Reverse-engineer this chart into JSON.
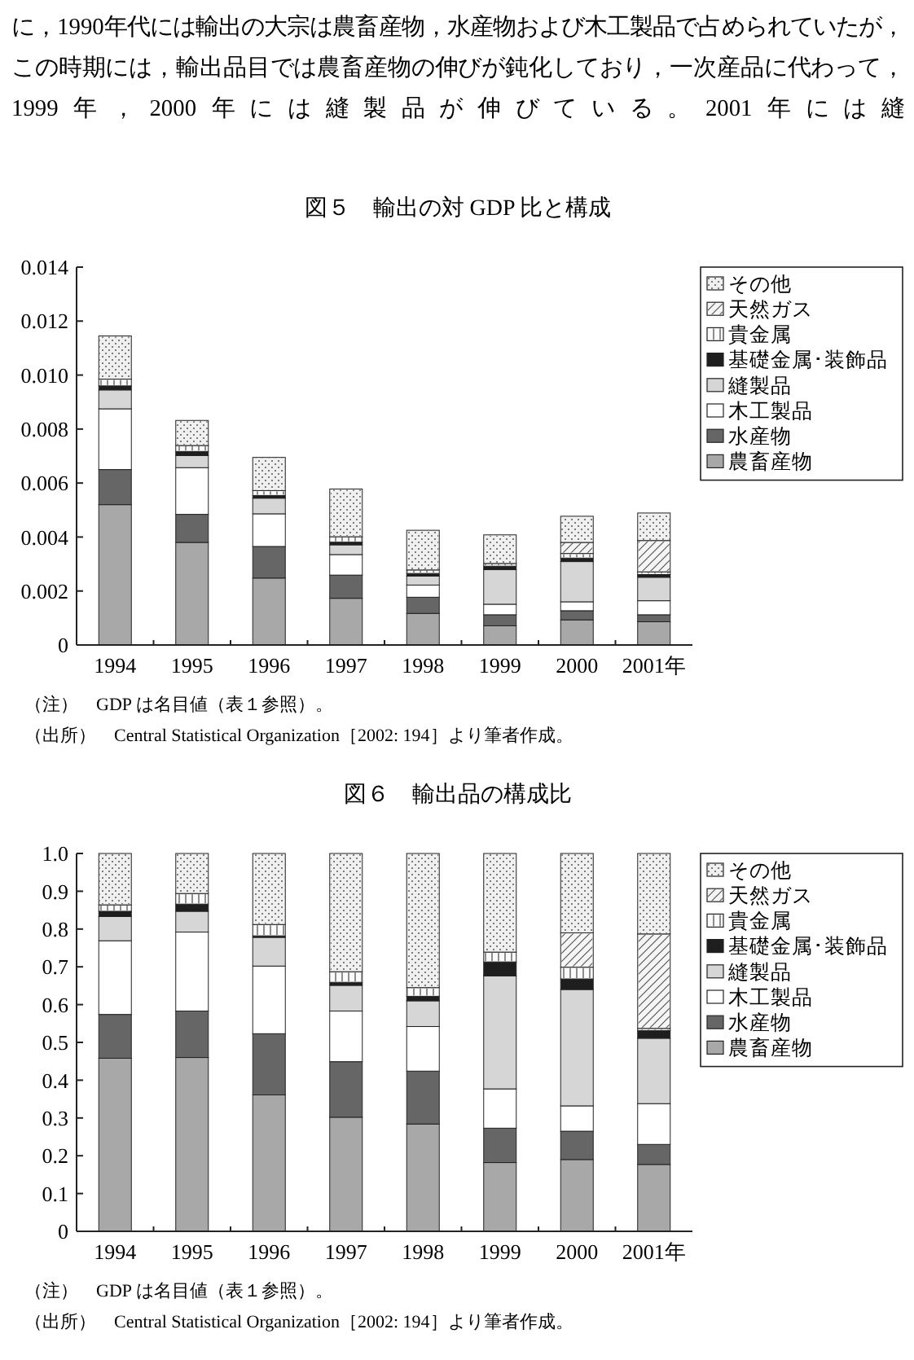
{
  "chart_data": [
    {
      "type": "bar",
      "stacked": true,
      "title": "図５　輸出の対 GDP 比と構成",
      "categories": [
        "1994",
        "1995",
        "1996",
        "1997",
        "1998",
        "1999",
        "2000",
        "2001年"
      ],
      "series": [
        {
          "name": "農畜産物",
          "color": "#a8a8a8",
          "values": [
            0.0052,
            0.0038,
            0.00248,
            0.00173,
            0.00117,
            0.00071,
            0.00093,
            0.00086
          ]
        },
        {
          "name": "水産物",
          "color": "#666666",
          "values": [
            0.0013,
            0.00104,
            0.00117,
            0.00086,
            0.0006,
            0.00041,
            0.00034,
            0.00026
          ]
        },
        {
          "name": "木工製品",
          "color": "#ffffff",
          "values": [
            0.00225,
            0.00173,
            0.00121,
            0.00076,
            0.00045,
            0.00039,
            0.00033,
            0.00052
          ]
        },
        {
          "name": "縫製品",
          "color": "#d6d6d6",
          "values": [
            0.0007,
            0.00045,
            0.00058,
            0.00036,
            0.00033,
            0.00128,
            0.00149,
            0.00087
          ]
        },
        {
          "name": "基礎金属･装飾品",
          "color": "#1e1e1e",
          "values": [
            0.00015,
            0.00015,
            0.0001,
            0.0001,
            0.0001,
            0.00013,
            0.00013,
            0.0001
          ]
        },
        {
          "name": "貴金属",
          "color": "#fafafa",
          "values": [
            0.00025,
            0.00022,
            0.00018,
            0.0002,
            0.00013,
            0.0001,
            0.00017,
            0.0001
          ]
        },
        {
          "name": "天然ガス",
          "color": "#f5f5f5",
          "values": [
            0,
            0,
            0,
            0,
            0,
            0,
            0.00041,
            0.00116
          ]
        },
        {
          "name": "その他",
          "color": "#f0f0f0",
          "values": [
            0.0016,
            0.00093,
            0.00123,
            0.00177,
            0.00147,
            0.00106,
            0.00097,
            0.00102
          ]
        }
      ],
      "ylim": [
        0,
        0.014
      ],
      "yticks": [
        0,
        0.002,
        0.004,
        0.006,
        0.008,
        {
          "value": 0.01,
          "label": "0.010"
        },
        0.012,
        0.014
      ],
      "legend": "right",
      "annotations": [
        "に，1990年代には輸出の大宗は農畜産物，水産物および木工製品で占められていたが，この時期には，輸出品目では農畜産物の伸びが鈍化しており，一次産品に代わって，1999年，2000年には縫製品が伸びている。2001年には縫",
        "（注）　GDP は名目値（表１参照）。",
        "（出所）　Central Statistical Organization［2002: 194］より筆者作成。"
      ]
    },
    {
      "type": "bar",
      "stacked": true,
      "title": "図６　輸出品の構成比",
      "categories": [
        "1994",
        "1995",
        "1996",
        "1997",
        "1998",
        "1999",
        "2000",
        "2001年"
      ],
      "series": [
        {
          "name": "農畜産物",
          "color": "#a8a8a8",
          "values": [
            0.458,
            0.46,
            0.361,
            0.302,
            0.284,
            0.182,
            0.19,
            0.177
          ]
        },
        {
          "name": "水産物",
          "color": "#666666",
          "values": [
            0.116,
            0.123,
            0.162,
            0.147,
            0.14,
            0.091,
            0.075,
            0.053
          ]
        },
        {
          "name": "木工製品",
          "color": "#ffffff",
          "values": [
            0.195,
            0.209,
            0.179,
            0.134,
            0.118,
            0.104,
            0.067,
            0.108
          ]
        },
        {
          "name": "縫製品",
          "color": "#d6d6d6",
          "values": [
            0.064,
            0.055,
            0.076,
            0.068,
            0.068,
            0.299,
            0.308,
            0.173
          ]
        },
        {
          "name": "基礎金属･装飾品",
          "color": "#1e1e1e",
          "values": [
            0.014,
            0.019,
            0.004,
            0.008,
            0.012,
            0.037,
            0.028,
            0.02
          ]
        },
        {
          "name": "貴金属",
          "color": "#fafafa",
          "values": [
            0.017,
            0.028,
            0.03,
            0.028,
            0.023,
            0.026,
            0.031,
            0.006
          ]
        },
        {
          "name": "天然ガス",
          "color": "#f5f5f5",
          "values": [
            0,
            0,
            0,
            0,
            0,
            0,
            0.091,
            0.25
          ]
        },
        {
          "name": "その他",
          "color": "#f0f0f0",
          "values": [
            0.136,
            0.106,
            0.188,
            0.313,
            0.355,
            0.261,
            0.21,
            0.213
          ]
        }
      ],
      "ylim": [
        0,
        1
      ],
      "yticks": [
        0,
        0.1,
        0.2,
        0.3,
        0.4,
        0.5,
        0.6,
        0.7,
        0.8,
        0.9,
        {
          "value": 1,
          "label": "1.0"
        }
      ],
      "legend": "right",
      "annotations": [
        "（注）　GDP は名目値（表１参照）。",
        "（出所）　Central Statistical Organization［2002: 194］より筆者作成。"
      ]
    }
  ]
}
